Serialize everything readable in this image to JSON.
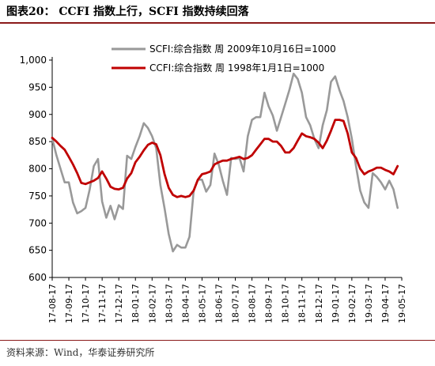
{
  "header": {
    "title": "图表20： CCFI 指数上行，SCFI 指数持续回落"
  },
  "footer": {
    "source": "资料来源：Wind，华泰证券研究所"
  },
  "colors": {
    "scfi": "#999999",
    "ccfi": "#c00000",
    "rule": "#8b1a1a"
  },
  "chart_data": {
    "type": "line",
    "title": "",
    "xlabel": "",
    "ylabel": "",
    "ylim": [
      600,
      1000
    ],
    "yticks": [
      "600",
      "650",
      "700",
      "750",
      "800",
      "850",
      "900",
      "950",
      "1,000"
    ],
    "yticks_values": [
      600,
      650,
      700,
      750,
      800,
      850,
      900,
      950,
      1000
    ],
    "xticks": [
      "17-08-17",
      "17-09-17",
      "17-10-17",
      "17-11-17",
      "17-12-17",
      "18-01-17",
      "18-02-17",
      "18-03-17",
      "18-04-17",
      "18-05-17",
      "18-06-17",
      "18-07-17",
      "18-08-17",
      "18-09-17",
      "18-10-17",
      "18-11-17",
      "18-12-17",
      "19-01-17",
      "19-02-17",
      "19-03-17",
      "19-04-17",
      "19-05-17"
    ],
    "x_range": [
      0,
      21
    ],
    "grid": false,
    "legend_position": "top",
    "series": [
      {
        "name": "SCFI:综合指数 周 2009年10月16日=1000",
        "color": "#999999",
        "x": [
          0,
          0.25,
          0.5,
          0.75,
          1,
          1.25,
          1.5,
          1.75,
          2,
          2.25,
          2.5,
          2.75,
          3,
          3.25,
          3.5,
          3.75,
          4,
          4.25,
          4.5,
          4.75,
          5,
          5.25,
          5.5,
          5.75,
          6,
          6.25,
          6.5,
          6.75,
          7,
          7.25,
          7.5,
          7.75,
          8,
          8.25,
          8.5,
          8.75,
          9,
          9.25,
          9.5,
          9.75,
          10,
          10.25,
          10.5,
          10.75,
          11,
          11.25,
          11.5,
          11.75,
          12,
          12.25,
          12.5,
          12.75,
          13,
          13.25,
          13.5,
          13.75,
          14,
          14.25,
          14.5,
          14.75,
          15,
          15.25,
          15.5,
          15.75,
          16,
          16.25,
          16.5,
          16.75,
          17,
          17.25,
          17.5,
          17.75,
          18,
          18.25,
          18.5,
          18.75,
          19,
          19.25,
          19.5,
          19.75,
          20,
          20.25,
          20.5,
          20.75
        ],
        "values": [
          856,
          825,
          800,
          775,
          775,
          738,
          718,
          722,
          728,
          762,
          805,
          818,
          740,
          710,
          732,
          707,
          733,
          726,
          824,
          818,
          840,
          860,
          884,
          875,
          860,
          838,
          770,
          727,
          680,
          648,
          660,
          655,
          655,
          675,
          760,
          780,
          780,
          758,
          770,
          828,
          808,
          778,
          752,
          820,
          818,
          820,
          795,
          860,
          890,
          895,
          895,
          940,
          915,
          898,
          870,
          895,
          920,
          945,
          975,
          965,
          940,
          895,
          880,
          855,
          838,
          880,
          908,
          960,
          970,
          945,
          925,
          895,
          855,
          805,
          760,
          738,
          728,
          792,
          785,
          775,
          762,
          778,
          762,
          728
        ]
      },
      {
        "name": "CCFI:综合指数 周 1998年1月1日=1000",
        "color": "#c00000",
        "x": [
          0,
          0.25,
          0.5,
          0.75,
          1,
          1.25,
          1.5,
          1.75,
          2,
          2.25,
          2.5,
          2.75,
          3,
          3.25,
          3.5,
          3.75,
          4,
          4.25,
          4.5,
          4.75,
          5,
          5.25,
          5.5,
          5.75,
          6,
          6.25,
          6.5,
          6.75,
          7,
          7.25,
          7.5,
          7.75,
          8,
          8.25,
          8.5,
          8.75,
          9,
          9.25,
          9.5,
          9.75,
          10,
          10.25,
          10.5,
          10.75,
          11,
          11.25,
          11.5,
          11.75,
          12,
          12.25,
          12.5,
          12.75,
          13,
          13.25,
          13.5,
          13.75,
          14,
          14.25,
          14.5,
          14.75,
          15,
          15.25,
          15.5,
          15.75,
          16,
          16.25,
          16.5,
          16.75,
          17,
          17.25,
          17.5,
          17.75,
          18,
          18.25,
          18.5,
          18.75,
          19,
          19.25,
          19.5,
          19.75,
          20,
          20.25,
          20.5,
          20.75
        ],
        "values": [
          857,
          850,
          842,
          835,
          822,
          808,
          792,
          774,
          772,
          775,
          778,
          783,
          795,
          782,
          767,
          763,
          762,
          765,
          782,
          792,
          812,
          822,
          834,
          844,
          848,
          845,
          825,
          790,
          765,
          752,
          748,
          750,
          748,
          750,
          760,
          780,
          790,
          792,
          795,
          808,
          812,
          815,
          815,
          818,
          820,
          822,
          818,
          820,
          825,
          835,
          845,
          855,
          855,
          850,
          850,
          842,
          830,
          830,
          838,
          852,
          865,
          860,
          858,
          855,
          848,
          838,
          852,
          870,
          890,
          890,
          888,
          865,
          830,
          820,
          800,
          790,
          795,
          798,
          802,
          802,
          798,
          795,
          790,
          805
        ]
      }
    ]
  }
}
